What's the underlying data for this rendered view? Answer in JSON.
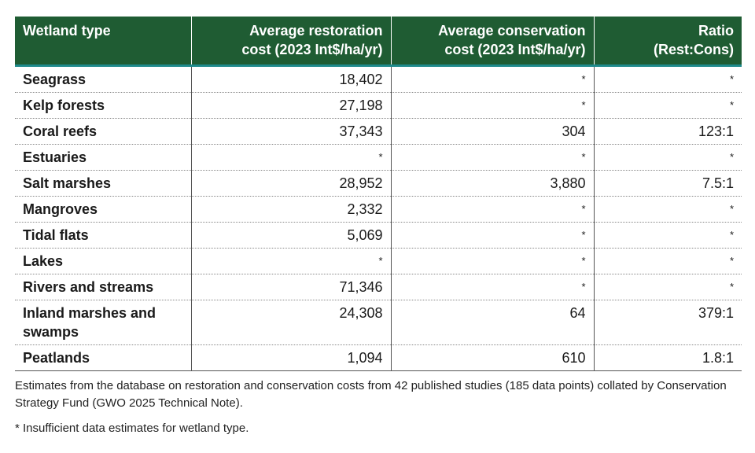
{
  "table": {
    "headers": [
      {
        "line1": "Wetland type",
        "line2": ""
      },
      {
        "line1": "Average restoration",
        "line2": "cost (2023 Int$/ha/yr)"
      },
      {
        "line1": "Average conservation",
        "line2": "cost (2023 Int$/ha/yr)"
      },
      {
        "line1": "Ratio",
        "line2": "(Rest:Cons)"
      }
    ],
    "rows": [
      {
        "type": "Seagrass",
        "restoration": "18,402",
        "conservation": "*",
        "ratio": "*"
      },
      {
        "type": "Kelp forests",
        "restoration": "27,198",
        "conservation": "*",
        "ratio": "*"
      },
      {
        "type": "Coral reefs",
        "restoration": "37,343",
        "conservation": "304",
        "ratio": "123:1"
      },
      {
        "type": "Estuaries",
        "restoration": "*",
        "conservation": "*",
        "ratio": "*"
      },
      {
        "type": "Salt marshes",
        "restoration": "28,952",
        "conservation": "3,880",
        "ratio": "7.5:1"
      },
      {
        "type": "Mangroves",
        "restoration": "2,332",
        "conservation": "*",
        "ratio": "*"
      },
      {
        "type": "Tidal flats",
        "restoration": "5,069",
        "conservation": "*",
        "ratio": "*"
      },
      {
        "type": "Lakes",
        "restoration": "*",
        "conservation": "*",
        "ratio": "*"
      },
      {
        "type": "Rivers and streams",
        "restoration": "71,346",
        "conservation": "*",
        "ratio": "*"
      },
      {
        "type": "Inland marshes and swamps",
        "restoration": "24,308",
        "conservation": "64",
        "ratio": "379:1"
      },
      {
        "type": "Peatlands",
        "restoration": "1,094",
        "conservation": "610",
        "ratio": "1.8:1"
      }
    ]
  },
  "notes": {
    "source": "Estimates from the database on restoration and conservation costs from 42 published studies (185 data points) collated by Conservation Strategy Fund (GWO 2025 Technical Note).",
    "footnote": "* Insufficient data estimates for wetland type."
  },
  "colors": {
    "header_bg": "#1f5c33",
    "header_rule": "#1f8a8c"
  }
}
